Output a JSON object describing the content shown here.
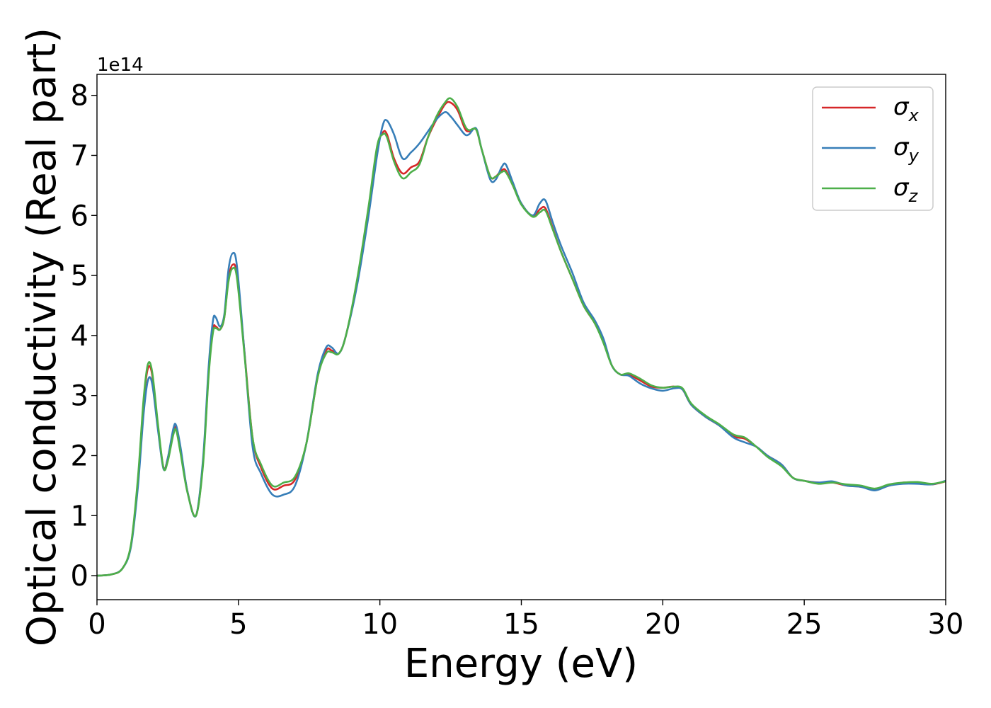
{
  "chart_data": {
    "type": "line",
    "title": "",
    "xlabel": "Energy (eV)",
    "ylabel": "Optical conductivity (Real part)",
    "y_offset_label": "1e14",
    "xlim": [
      0,
      30
    ],
    "ylim": [
      -0.4,
      8.35
    ],
    "x_ticks": [
      0,
      5,
      10,
      15,
      20,
      25,
      30
    ],
    "y_ticks": [
      0,
      1,
      2,
      3,
      4,
      5,
      6,
      7,
      8
    ],
    "grid": false,
    "legend_position": "top-right",
    "series": [
      {
        "name": "σx",
        "legend_symbol": "σ",
        "legend_subscript": "x",
        "color": "#d62728",
        "points": [
          [
            0,
            0
          ],
          [
            0.5,
            0.02
          ],
          [
            0.9,
            0.12
          ],
          [
            1.2,
            0.5
          ],
          [
            1.45,
            1.6
          ],
          [
            1.65,
            2.9
          ],
          [
            1.8,
            3.45
          ],
          [
            1.95,
            3.35
          ],
          [
            2.15,
            2.5
          ],
          [
            2.35,
            1.8
          ],
          [
            2.5,
            1.95
          ],
          [
            2.7,
            2.4
          ],
          [
            2.8,
            2.45
          ],
          [
            2.95,
            2.1
          ],
          [
            3.2,
            1.4
          ],
          [
            3.5,
            1.0
          ],
          [
            3.75,
            1.9
          ],
          [
            3.95,
            3.4
          ],
          [
            4.1,
            4.1
          ],
          [
            4.2,
            4.15
          ],
          [
            4.35,
            4.1
          ],
          [
            4.5,
            4.3
          ],
          [
            4.65,
            4.95
          ],
          [
            4.8,
            5.18
          ],
          [
            4.95,
            5.0
          ],
          [
            5.2,
            3.8
          ],
          [
            5.5,
            2.3
          ],
          [
            5.8,
            1.8
          ],
          [
            6.2,
            1.45
          ],
          [
            6.6,
            1.5
          ],
          [
            7.0,
            1.6
          ],
          [
            7.4,
            2.2
          ],
          [
            7.8,
            3.3
          ],
          [
            8.1,
            3.75
          ],
          [
            8.3,
            3.75
          ],
          [
            8.55,
            3.7
          ],
          [
            8.8,
            4.0
          ],
          [
            9.2,
            4.9
          ],
          [
            9.6,
            6.1
          ],
          [
            9.9,
            7.1
          ],
          [
            10.1,
            7.38
          ],
          [
            10.25,
            7.35
          ],
          [
            10.5,
            6.95
          ],
          [
            10.8,
            6.7
          ],
          [
            11.1,
            6.8
          ],
          [
            11.4,
            6.9
          ],
          [
            11.7,
            7.3
          ],
          [
            12.0,
            7.6
          ],
          [
            12.3,
            7.85
          ],
          [
            12.5,
            7.88
          ],
          [
            12.75,
            7.75
          ],
          [
            13.0,
            7.45
          ],
          [
            13.15,
            7.4
          ],
          [
            13.4,
            7.43
          ],
          [
            13.6,
            7.1
          ],
          [
            13.9,
            6.65
          ],
          [
            14.1,
            6.65
          ],
          [
            14.3,
            6.75
          ],
          [
            14.45,
            6.75
          ],
          [
            14.7,
            6.5
          ],
          [
            15.0,
            6.2
          ],
          [
            15.4,
            5.98
          ],
          [
            15.65,
            6.1
          ],
          [
            15.85,
            6.12
          ],
          [
            16.1,
            5.8
          ],
          [
            16.4,
            5.4
          ],
          [
            16.8,
            4.95
          ],
          [
            17.2,
            4.5
          ],
          [
            17.6,
            4.2
          ],
          [
            17.9,
            3.9
          ],
          [
            18.2,
            3.5
          ],
          [
            18.5,
            3.35
          ],
          [
            18.8,
            3.35
          ],
          [
            19.2,
            3.25
          ],
          [
            19.6,
            3.15
          ],
          [
            20.0,
            3.13
          ],
          [
            20.4,
            3.15
          ],
          [
            20.7,
            3.1
          ],
          [
            21.0,
            2.85
          ],
          [
            21.5,
            2.65
          ],
          [
            22.0,
            2.5
          ],
          [
            22.5,
            2.32
          ],
          [
            22.9,
            2.28
          ],
          [
            23.3,
            2.15
          ],
          [
            23.7,
            2.0
          ],
          [
            24.2,
            1.85
          ],
          [
            24.6,
            1.63
          ],
          [
            25.0,
            1.58
          ],
          [
            25.5,
            1.55
          ],
          [
            26.0,
            1.55
          ],
          [
            26.5,
            1.5
          ],
          [
            27.0,
            1.48
          ],
          [
            27.5,
            1.43
          ],
          [
            28.0,
            1.5
          ],
          [
            28.5,
            1.55
          ],
          [
            29.0,
            1.55
          ],
          [
            29.5,
            1.52
          ],
          [
            30.0,
            1.57
          ]
        ]
      },
      {
        "name": "σy",
        "legend_symbol": "σ",
        "legend_subscript": "y",
        "color": "#377eb8",
        "points": [
          [
            0,
            0
          ],
          [
            0.5,
            0.02
          ],
          [
            0.9,
            0.12
          ],
          [
            1.2,
            0.48
          ],
          [
            1.45,
            1.5
          ],
          [
            1.65,
            2.7
          ],
          [
            1.8,
            3.25
          ],
          [
            1.95,
            3.2
          ],
          [
            2.15,
            2.45
          ],
          [
            2.35,
            1.78
          ],
          [
            2.5,
            1.95
          ],
          [
            2.7,
            2.45
          ],
          [
            2.8,
            2.5
          ],
          [
            2.95,
            2.15
          ],
          [
            3.2,
            1.4
          ],
          [
            3.5,
            1.0
          ],
          [
            3.75,
            1.95
          ],
          [
            3.95,
            3.5
          ],
          [
            4.1,
            4.25
          ],
          [
            4.2,
            4.3
          ],
          [
            4.35,
            4.15
          ],
          [
            4.5,
            4.35
          ],
          [
            4.65,
            5.1
          ],
          [
            4.8,
            5.37
          ],
          [
            4.95,
            5.15
          ],
          [
            5.2,
            3.8
          ],
          [
            5.5,
            2.15
          ],
          [
            5.8,
            1.7
          ],
          [
            6.2,
            1.35
          ],
          [
            6.6,
            1.35
          ],
          [
            7.0,
            1.5
          ],
          [
            7.4,
            2.2
          ],
          [
            7.8,
            3.35
          ],
          [
            8.1,
            3.8
          ],
          [
            8.3,
            3.8
          ],
          [
            8.55,
            3.7
          ],
          [
            8.8,
            4.0
          ],
          [
            9.2,
            4.85
          ],
          [
            9.6,
            6.0
          ],
          [
            9.9,
            7.0
          ],
          [
            10.1,
            7.5
          ],
          [
            10.25,
            7.58
          ],
          [
            10.5,
            7.35
          ],
          [
            10.8,
            6.95
          ],
          [
            11.1,
            7.05
          ],
          [
            11.4,
            7.2
          ],
          [
            11.7,
            7.4
          ],
          [
            12.0,
            7.6
          ],
          [
            12.3,
            7.72
          ],
          [
            12.5,
            7.65
          ],
          [
            12.75,
            7.5
          ],
          [
            13.0,
            7.35
          ],
          [
            13.15,
            7.35
          ],
          [
            13.4,
            7.45
          ],
          [
            13.6,
            7.1
          ],
          [
            13.9,
            6.6
          ],
          [
            14.1,
            6.6
          ],
          [
            14.3,
            6.8
          ],
          [
            14.45,
            6.85
          ],
          [
            14.7,
            6.55
          ],
          [
            15.0,
            6.2
          ],
          [
            15.4,
            6.0
          ],
          [
            15.65,
            6.2
          ],
          [
            15.85,
            6.25
          ],
          [
            16.1,
            5.9
          ],
          [
            16.4,
            5.5
          ],
          [
            16.8,
            5.05
          ],
          [
            17.2,
            4.55
          ],
          [
            17.6,
            4.25
          ],
          [
            17.9,
            3.95
          ],
          [
            18.2,
            3.5
          ],
          [
            18.5,
            3.35
          ],
          [
            18.8,
            3.33
          ],
          [
            19.2,
            3.2
          ],
          [
            19.6,
            3.12
          ],
          [
            20.0,
            3.08
          ],
          [
            20.4,
            3.12
          ],
          [
            20.7,
            3.1
          ],
          [
            21.0,
            2.85
          ],
          [
            21.5,
            2.65
          ],
          [
            22.0,
            2.5
          ],
          [
            22.5,
            2.3
          ],
          [
            22.9,
            2.22
          ],
          [
            23.3,
            2.15
          ],
          [
            23.7,
            2.0
          ],
          [
            24.2,
            1.85
          ],
          [
            24.6,
            1.63
          ],
          [
            25.0,
            1.58
          ],
          [
            25.5,
            1.55
          ],
          [
            26.0,
            1.57
          ],
          [
            26.5,
            1.5
          ],
          [
            27.0,
            1.48
          ],
          [
            27.5,
            1.42
          ],
          [
            28.0,
            1.5
          ],
          [
            28.5,
            1.53
          ],
          [
            29.0,
            1.53
          ],
          [
            29.5,
            1.52
          ],
          [
            30.0,
            1.58
          ]
        ]
      },
      {
        "name": "σz",
        "legend_symbol": "σ",
        "legend_subscript": "z",
        "color": "#4daf4a",
        "points": [
          [
            0,
            0
          ],
          [
            0.5,
            0.02
          ],
          [
            0.9,
            0.12
          ],
          [
            1.2,
            0.52
          ],
          [
            1.45,
            1.65
          ],
          [
            1.65,
            2.95
          ],
          [
            1.8,
            3.52
          ],
          [
            1.95,
            3.4
          ],
          [
            2.15,
            2.55
          ],
          [
            2.35,
            1.8
          ],
          [
            2.5,
            1.9
          ],
          [
            2.7,
            2.35
          ],
          [
            2.8,
            2.42
          ],
          [
            2.95,
            2.05
          ],
          [
            3.2,
            1.38
          ],
          [
            3.5,
            1.0
          ],
          [
            3.75,
            1.85
          ],
          [
            3.95,
            3.35
          ],
          [
            4.1,
            4.05
          ],
          [
            4.2,
            4.12
          ],
          [
            4.35,
            4.1
          ],
          [
            4.5,
            4.3
          ],
          [
            4.65,
            4.9
          ],
          [
            4.8,
            5.12
          ],
          [
            4.95,
            4.95
          ],
          [
            5.2,
            3.75
          ],
          [
            5.5,
            2.3
          ],
          [
            5.8,
            1.85
          ],
          [
            6.2,
            1.5
          ],
          [
            6.6,
            1.55
          ],
          [
            7.0,
            1.65
          ],
          [
            7.4,
            2.2
          ],
          [
            7.8,
            3.3
          ],
          [
            8.1,
            3.7
          ],
          [
            8.3,
            3.72
          ],
          [
            8.55,
            3.7
          ],
          [
            8.8,
            4.0
          ],
          [
            9.2,
            4.95
          ],
          [
            9.6,
            6.15
          ],
          [
            9.9,
            7.15
          ],
          [
            10.1,
            7.35
          ],
          [
            10.25,
            7.3
          ],
          [
            10.5,
            6.9
          ],
          [
            10.8,
            6.62
          ],
          [
            11.1,
            6.72
          ],
          [
            11.4,
            6.85
          ],
          [
            11.7,
            7.3
          ],
          [
            12.0,
            7.65
          ],
          [
            12.3,
            7.88
          ],
          [
            12.5,
            7.95
          ],
          [
            12.75,
            7.8
          ],
          [
            13.0,
            7.5
          ],
          [
            13.15,
            7.42
          ],
          [
            13.4,
            7.43
          ],
          [
            13.6,
            7.1
          ],
          [
            13.9,
            6.65
          ],
          [
            14.1,
            6.65
          ],
          [
            14.3,
            6.72
          ],
          [
            14.45,
            6.72
          ],
          [
            14.7,
            6.5
          ],
          [
            15.0,
            6.18
          ],
          [
            15.4,
            5.98
          ],
          [
            15.65,
            6.05
          ],
          [
            15.85,
            6.08
          ],
          [
            16.1,
            5.78
          ],
          [
            16.4,
            5.4
          ],
          [
            16.8,
            4.95
          ],
          [
            17.2,
            4.5
          ],
          [
            17.6,
            4.2
          ],
          [
            17.9,
            3.88
          ],
          [
            18.2,
            3.5
          ],
          [
            18.5,
            3.35
          ],
          [
            18.8,
            3.37
          ],
          [
            19.2,
            3.28
          ],
          [
            19.6,
            3.17
          ],
          [
            20.0,
            3.13
          ],
          [
            20.4,
            3.15
          ],
          [
            20.7,
            3.12
          ],
          [
            21.0,
            2.87
          ],
          [
            21.5,
            2.67
          ],
          [
            22.0,
            2.52
          ],
          [
            22.5,
            2.35
          ],
          [
            22.9,
            2.3
          ],
          [
            23.3,
            2.15
          ],
          [
            23.7,
            1.98
          ],
          [
            24.2,
            1.82
          ],
          [
            24.6,
            1.63
          ],
          [
            25.0,
            1.58
          ],
          [
            25.5,
            1.53
          ],
          [
            26.0,
            1.55
          ],
          [
            26.5,
            1.52
          ],
          [
            27.0,
            1.5
          ],
          [
            27.5,
            1.45
          ],
          [
            28.0,
            1.52
          ],
          [
            28.5,
            1.55
          ],
          [
            29.0,
            1.56
          ],
          [
            29.5,
            1.53
          ],
          [
            30.0,
            1.57
          ]
        ]
      }
    ]
  }
}
